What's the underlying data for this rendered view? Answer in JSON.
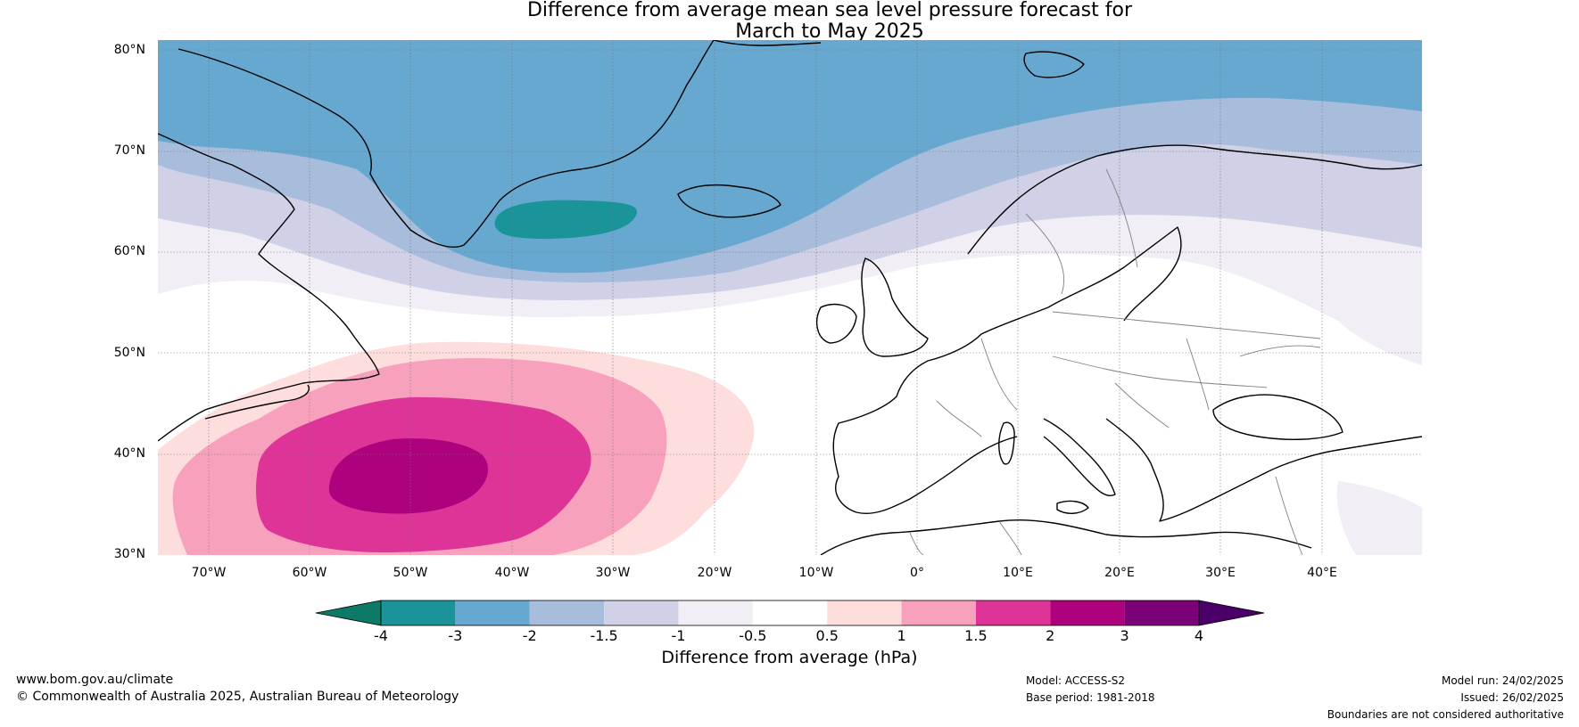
{
  "title_line1": "Difference from average mean sea level pressure forecast for",
  "title_line2": "March to May 2025",
  "lat_labels": [
    "80°N",
    "70°N",
    "60°N",
    "50°N",
    "40°N",
    "30°N"
  ],
  "lon_labels": [
    "70°W",
    "60°W",
    "50°W",
    "40°W",
    "30°W",
    "20°W",
    "10°W",
    "0°",
    "10°E",
    "20°E",
    "30°E",
    "40°E"
  ],
  "colorbar": {
    "ticks": [
      "-4",
      "-3",
      "-2",
      "-1.5",
      "-1",
      "-0.5",
      "0.5",
      "1",
      "1.5",
      "2",
      "3",
      "4"
    ],
    "colors": [
      "#1a9399",
      "#66a8d0",
      "#a8bcdc",
      "#d0d1e6",
      "#f2eef5",
      "#ffffff",
      "#fddedd",
      "#f8a1bd",
      "#de3497",
      "#ad017e",
      "#7a0177"
    ],
    "under_color": "#0d7a68",
    "over_color": "#4a0068",
    "label": "Difference from average (hPa)"
  },
  "footer": {
    "website": "www.bom.gov.au/climate",
    "copyright": "© Commonwealth of Australia 2025, Australian Bureau of Meteorology",
    "model": "Model: ACCESS-S2",
    "base_period": "Base period: 1981-2018",
    "model_run": "Model run: 24/02/2025",
    "issued": "Issued: 26/02/2025",
    "disclaimer": "Boundaries are not considered authoritative"
  }
}
